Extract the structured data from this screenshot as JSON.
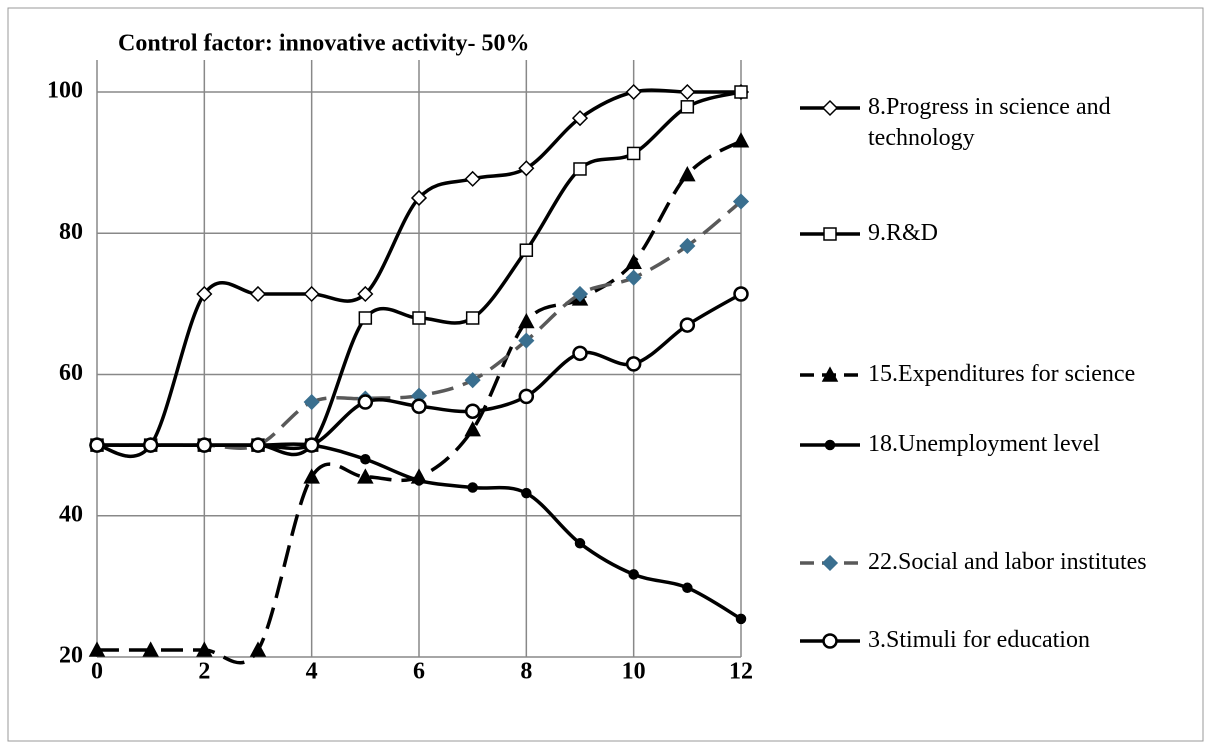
{
  "chart_data": {
    "type": "line",
    "title": "Control factor: innovative activity- 50%",
    "x": [
      0,
      1,
      2,
      3,
      4,
      5,
      6,
      7,
      8,
      9,
      10,
      11,
      12
    ],
    "xlim": [
      0,
      12
    ],
    "xticks": [
      0,
      2,
      4,
      6,
      8,
      10,
      12
    ],
    "ylim": [
      20,
      100
    ],
    "yticks": [
      20,
      40,
      60,
      80,
      100
    ],
    "grid": true,
    "smooth": true,
    "legend": "right",
    "series": [
      {
        "name": "8.Progress in science and technology",
        "color": "#000000",
        "marker": "diamond",
        "marker_fill": "#ffffff",
        "dash": false,
        "values": [
          50,
          50,
          71.4,
          71.4,
          71.4,
          71.4,
          85,
          87.7,
          89.2,
          96.3,
          100,
          100,
          100
        ]
      },
      {
        "name": "9.R&D",
        "color": "#000000",
        "marker": "square",
        "marker_fill": "#ffffff",
        "dash": false,
        "values": [
          50,
          50,
          50,
          50,
          50,
          68,
          68,
          68,
          77.6,
          89.1,
          91.3,
          97.9,
          100
        ]
      },
      {
        "name": "15.Expenditures for science",
        "color": "#000000",
        "marker": "triangle",
        "marker_fill": "#000000",
        "dash": true,
        "values": [
          21,
          21,
          21,
          21,
          45.5,
          45.5,
          45.5,
          52.2,
          67.5,
          70.7,
          75.9,
          88.3,
          93.1
        ]
      },
      {
        "name": "18.Unemployment level",
        "color": "#000000",
        "marker": "dot",
        "marker_fill": "#000000",
        "dash": false,
        "values": [
          50,
          50,
          50,
          50,
          50,
          48,
          45,
          44,
          43.2,
          36.1,
          31.7,
          29.8,
          25.4
        ]
      },
      {
        "name": "22.Social and labor institutes",
        "color": "#595959",
        "marker": "diamond",
        "marker_fill": "#3a6f8f",
        "dash": true,
        "values": [
          50,
          50,
          50,
          50,
          56.1,
          56.6,
          57,
          59.2,
          64.8,
          71.4,
          73.7,
          78.2,
          84.5
        ]
      },
      {
        "name": "3.Stimuli for education",
        "color": "#000000",
        "marker": "circle",
        "marker_fill": "#ffffff",
        "dash": false,
        "values": [
          50,
          50,
          50,
          50,
          50,
          56.1,
          55.5,
          54.8,
          56.9,
          63,
          61.5,
          67,
          71.4
        ]
      }
    ]
  }
}
